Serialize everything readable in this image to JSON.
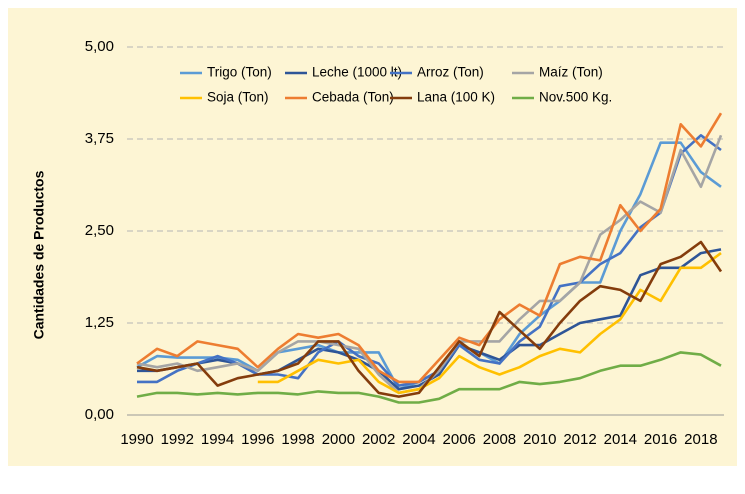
{
  "chart_data": {
    "type": "line",
    "y_label": "Cantidades de  Productos",
    "x": [
      1990,
      1991,
      1992,
      1993,
      1994,
      1995,
      1996,
      1997,
      1998,
      1999,
      2000,
      2001,
      2002,
      2003,
      2004,
      2005,
      2006,
      2007,
      2008,
      2009,
      2010,
      2011,
      2012,
      2013,
      2014,
      2015,
      2016,
      2017,
      2018,
      2019
    ],
    "xlim": [
      1990,
      2019
    ],
    "xticks": [
      1990,
      1992,
      1994,
      1996,
      1998,
      2000,
      2002,
      2004,
      2006,
      2008,
      2010,
      2012,
      2014,
      2016,
      2018
    ],
    "ylim": [
      0,
      5
    ],
    "yticks": [
      {
        "value": 0,
        "label": "0,00"
      },
      {
        "value": 1.25,
        "label": "1,25"
      },
      {
        "value": 2.5,
        "label": "2,50"
      },
      {
        "value": 3.75,
        "label": "3,75"
      },
      {
        "value": 5,
        "label": "5,00"
      }
    ],
    "grid": true,
    "series": [
      {
        "name": "Trigo (Ton)",
        "color": "#5b9bd5",
        "values": [
          0.65,
          0.8,
          0.78,
          0.78,
          0.78,
          0.75,
          0.6,
          0.85,
          0.9,
          0.95,
          0.85,
          0.85,
          0.85,
          0.35,
          0.45,
          0.6,
          0.95,
          0.85,
          0.7,
          1.1,
          1.35,
          1.55,
          1.8,
          1.8,
          2.5,
          3.0,
          3.7,
          3.7,
          3.3,
          3.1
        ]
      },
      {
        "name": "Leche (1000 lt)",
        "color": "#2e5597",
        "values": [
          0.6,
          0.6,
          0.65,
          0.7,
          0.75,
          0.7,
          0.55,
          0.6,
          0.75,
          0.9,
          0.85,
          0.75,
          0.6,
          0.35,
          0.4,
          0.55,
          0.95,
          0.85,
          0.75,
          0.95,
          0.95,
          1.1,
          1.25,
          1.3,
          1.35,
          1.9,
          2.0,
          2.0,
          2.2,
          2.25
        ]
      },
      {
        "name": "Arroz (Ton)",
        "color": "#4472c4",
        "values": [
          0.45,
          0.45,
          0.6,
          0.7,
          0.8,
          0.7,
          0.55,
          0.55,
          0.5,
          0.85,
          1.0,
          0.8,
          0.7,
          0.4,
          0.45,
          0.6,
          0.95,
          0.75,
          0.7,
          1.0,
          1.2,
          1.75,
          1.8,
          2.05,
          2.2,
          2.55,
          2.75,
          3.55,
          3.8,
          3.6
        ]
      },
      {
        "name": "Maíz (Ton)",
        "color": "#a5a5a5",
        "values": [
          0.7,
          0.65,
          0.7,
          0.6,
          0.65,
          0.7,
          0.6,
          0.85,
          1.0,
          1.0,
          0.95,
          0.9,
          0.55,
          0.3,
          0.35,
          0.6,
          1.0,
          1.0,
          1.0,
          1.3,
          1.55,
          1.55,
          1.8,
          2.45,
          2.65,
          2.9,
          2.75,
          3.6,
          3.1,
          3.8
        ]
      },
      {
        "name": "Soja (Ton)",
        "color": "#ffc000",
        "values": [
          null,
          null,
          null,
          null,
          null,
          null,
          0.45,
          0.45,
          0.6,
          0.75,
          0.7,
          0.75,
          0.45,
          0.3,
          0.35,
          0.5,
          0.8,
          0.65,
          0.55,
          0.65,
          0.8,
          0.9,
          0.85,
          1.1,
          1.3,
          1.7,
          1.55,
          2.0,
          2.0,
          2.2
        ]
      },
      {
        "name": "Cebada (Ton)",
        "color": "#ed7d31",
        "values": [
          0.7,
          0.9,
          0.8,
          1.0,
          0.95,
          0.9,
          0.65,
          0.9,
          1.1,
          1.05,
          1.1,
          0.95,
          0.6,
          0.45,
          0.45,
          0.75,
          1.05,
          0.95,
          1.3,
          1.5,
          1.35,
          2.05,
          2.15,
          2.1,
          2.85,
          2.5,
          2.8,
          3.95,
          3.65,
          4.1
        ]
      },
      {
        "name": "Lana (100 K)",
        "color": "#843c0c",
        "values": [
          0.65,
          0.6,
          0.65,
          0.7,
          0.4,
          0.5,
          0.55,
          0.6,
          0.7,
          1.0,
          1.0,
          0.6,
          0.3,
          0.25,
          0.3,
          0.65,
          1.0,
          0.8,
          1.4,
          1.15,
          0.9,
          1.25,
          1.55,
          1.75,
          1.7,
          1.55,
          2.05,
          2.15,
          2.35,
          1.95
        ]
      },
      {
        "name": "Nov.500 Kg.",
        "color": "#70ad47",
        "values": [
          0.25,
          0.3,
          0.3,
          0.28,
          0.3,
          0.28,
          0.3,
          0.3,
          0.28,
          0.32,
          0.3,
          0.3,
          0.25,
          0.17,
          0.17,
          0.22,
          0.35,
          0.35,
          0.35,
          0.45,
          0.42,
          0.45,
          0.5,
          0.6,
          0.67,
          0.67,
          0.75,
          0.85,
          0.82,
          0.67
        ]
      }
    ]
  }
}
